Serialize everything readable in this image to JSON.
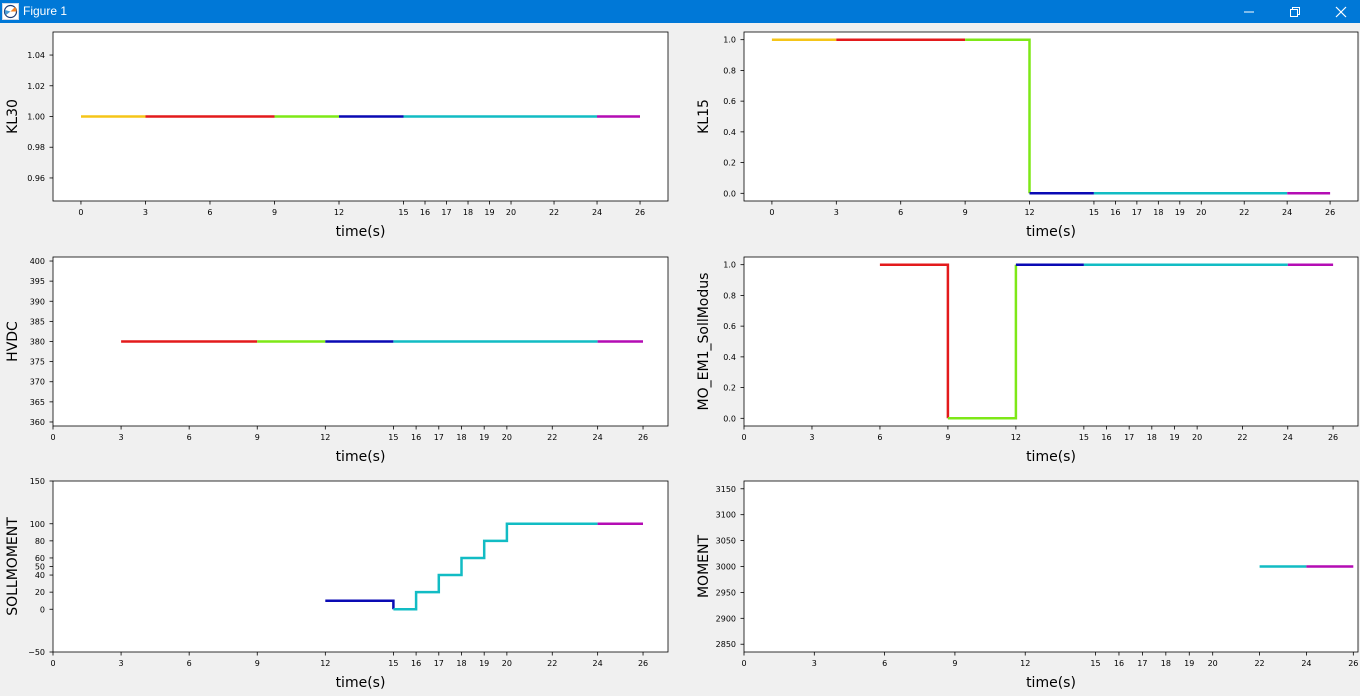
{
  "window": {
    "title": "Figure 1",
    "icons": {
      "app": "matplotlib-figure-icon",
      "minimize": "minimize-icon",
      "maximize": "restore-icon",
      "close": "close-icon"
    }
  },
  "colors": {
    "yellow": "#f5c518",
    "red": "#e31a1c",
    "green": "#7ee817",
    "blue": "#0a0ab4",
    "cyan": "#12bcc4",
    "magenta": "#b40cb4"
  },
  "chart_data": [
    {
      "id": "kl30",
      "type": "line",
      "xlabel": "time(s)",
      "ylabel": "KL30",
      "xlim": [
        -1.3,
        27.3
      ],
      "ylim": [
        0.945,
        1.055
      ],
      "xticks": [
        0,
        3,
        6,
        9,
        12,
        15,
        16,
        17,
        18,
        19,
        20,
        22,
        24,
        26
      ],
      "yticks": [
        0.96,
        0.98,
        1.0,
        1.02,
        1.04
      ],
      "ytick_labels": [
        "0.96",
        "0.98",
        "1.00",
        "1.02",
        "1.04"
      ],
      "segments": [
        {
          "color": "yellow",
          "x": [
            0,
            3
          ],
          "y": [
            1,
            1
          ]
        },
        {
          "color": "red",
          "x": [
            3,
            9
          ],
          "y": [
            1,
            1
          ]
        },
        {
          "color": "green",
          "x": [
            9,
            12
          ],
          "y": [
            1,
            1
          ]
        },
        {
          "color": "blue",
          "x": [
            12,
            15
          ],
          "y": [
            1,
            1
          ]
        },
        {
          "color": "cyan",
          "x": [
            15,
            24
          ],
          "y": [
            1,
            1
          ]
        },
        {
          "color": "magenta",
          "x": [
            24,
            26
          ],
          "y": [
            1,
            1
          ]
        }
      ]
    },
    {
      "id": "kl15",
      "type": "line",
      "xlabel": "time(s)",
      "ylabel": "KL15",
      "xlim": [
        -1.3,
        27.3
      ],
      "ylim": [
        -0.05,
        1.05
      ],
      "xticks": [
        0,
        3,
        6,
        9,
        12,
        15,
        16,
        17,
        18,
        19,
        20,
        22,
        24,
        26
      ],
      "yticks": [
        0.0,
        0.2,
        0.4,
        0.6,
        0.8,
        1.0
      ],
      "ytick_labels": [
        "0.0",
        "0.2",
        "0.4",
        "0.6",
        "0.8",
        "1.0"
      ],
      "segments": [
        {
          "color": "yellow",
          "x": [
            0,
            3
          ],
          "y": [
            1,
            1
          ]
        },
        {
          "color": "red",
          "x": [
            3,
            9
          ],
          "y": [
            1,
            1
          ]
        },
        {
          "color": "green",
          "x": [
            9,
            12,
            12
          ],
          "y": [
            1,
            1,
            0
          ]
        },
        {
          "color": "blue",
          "x": [
            12,
            15
          ],
          "y": [
            0,
            0
          ]
        },
        {
          "color": "cyan",
          "x": [
            15,
            24
          ],
          "y": [
            0,
            0
          ]
        },
        {
          "color": "magenta",
          "x": [
            24,
            26
          ],
          "y": [
            0,
            0
          ]
        }
      ]
    },
    {
      "id": "hvdc",
      "type": "line",
      "xlabel": "time(s)",
      "ylabel": "HVDC",
      "xlim": [
        0,
        27.1
      ],
      "ylim": [
        359,
        401
      ],
      "xticks": [
        0,
        3,
        6,
        9,
        12,
        15,
        16,
        17,
        18,
        19,
        20,
        22,
        24,
        26
      ],
      "yticks": [
        360,
        365,
        370,
        375,
        380,
        385,
        390,
        395,
        400
      ],
      "ytick_labels": [
        "360",
        "365",
        "370",
        "375",
        "380",
        "385",
        "390",
        "395",
        "400"
      ],
      "segments": [
        {
          "color": "red",
          "x": [
            3,
            9
          ],
          "y": [
            380,
            380
          ]
        },
        {
          "color": "green",
          "x": [
            9,
            12
          ],
          "y": [
            380,
            380
          ]
        },
        {
          "color": "blue",
          "x": [
            12,
            15
          ],
          "y": [
            380,
            380
          ]
        },
        {
          "color": "cyan",
          "x": [
            15,
            24
          ],
          "y": [
            380,
            380
          ]
        },
        {
          "color": "magenta",
          "x": [
            24,
            26
          ],
          "y": [
            380,
            380
          ]
        }
      ]
    },
    {
      "id": "mo_em1",
      "type": "line",
      "xlabel": "time(s)",
      "ylabel": "MO_EM1_SollModus",
      "xlim": [
        0,
        27.1
      ],
      "ylim": [
        -0.05,
        1.05
      ],
      "xticks": [
        0,
        3,
        6,
        9,
        12,
        15,
        16,
        17,
        18,
        19,
        20,
        22,
        24,
        26
      ],
      "yticks": [
        0.0,
        0.2,
        0.4,
        0.6,
        0.8,
        1.0
      ],
      "ytick_labels": [
        "0.0",
        "0.2",
        "0.4",
        "0.6",
        "0.8",
        "1.0"
      ],
      "segments": [
        {
          "color": "red",
          "x": [
            6,
            9,
            9
          ],
          "y": [
            1,
            1,
            0
          ]
        },
        {
          "color": "green",
          "x": [
            9,
            12,
            12
          ],
          "y": [
            0,
            0,
            1
          ]
        },
        {
          "color": "blue",
          "x": [
            12,
            15
          ],
          "y": [
            1,
            1
          ]
        },
        {
          "color": "cyan",
          "x": [
            15,
            24
          ],
          "y": [
            1,
            1
          ]
        },
        {
          "color": "magenta",
          "x": [
            24,
            26
          ],
          "y": [
            1,
            1
          ]
        }
      ]
    },
    {
      "id": "sollmoment",
      "type": "line",
      "xlabel": "time(s)",
      "ylabel": "SOLLMOMENT",
      "xlim": [
        0,
        27.1
      ],
      "ylim": [
        -50,
        150
      ],
      "xticks": [
        0,
        3,
        6,
        9,
        12,
        15,
        16,
        17,
        18,
        19,
        20,
        22,
        24,
        26
      ],
      "yticks": [
        -50,
        0,
        20,
        40,
        50,
        60,
        80,
        100,
        150
      ],
      "ytick_labels": [
        "−50",
        "0",
        "20",
        "40",
        "50",
        "60",
        "80",
        "100",
        "150"
      ],
      "segments": [
        {
          "color": "blue",
          "x": [
            12,
            15,
            15
          ],
          "y": [
            10,
            10,
            0
          ]
        },
        {
          "color": "cyan",
          "x": [
            15,
            16,
            16,
            17,
            17,
            18,
            18,
            19,
            19,
            20,
            20,
            24
          ],
          "y": [
            0,
            0,
            20,
            20,
            40,
            40,
            60,
            60,
            80,
            80,
            100,
            100
          ]
        },
        {
          "color": "magenta",
          "x": [
            24,
            26
          ],
          "y": [
            100,
            100
          ]
        }
      ]
    },
    {
      "id": "moment",
      "type": "line",
      "xlabel": "time(s)",
      "ylabel": "MOMENT",
      "xlim": [
        0,
        26.2
      ],
      "ylim": [
        2835,
        3165
      ],
      "xticks": [
        0,
        3,
        6,
        9,
        12,
        15,
        16,
        17,
        18,
        19,
        20,
        22,
        24,
        26
      ],
      "yticks": [
        2850,
        2900,
        2950,
        3000,
        3050,
        3100,
        3150
      ],
      "ytick_labels": [
        "2850",
        "2900",
        "2950",
        "3000",
        "3050",
        "3100",
        "3150"
      ],
      "segments": [
        {
          "color": "cyan",
          "x": [
            22,
            24
          ],
          "y": [
            3000,
            3000
          ]
        },
        {
          "color": "magenta",
          "x": [
            24,
            26
          ],
          "y": [
            3000,
            3000
          ]
        }
      ]
    }
  ]
}
